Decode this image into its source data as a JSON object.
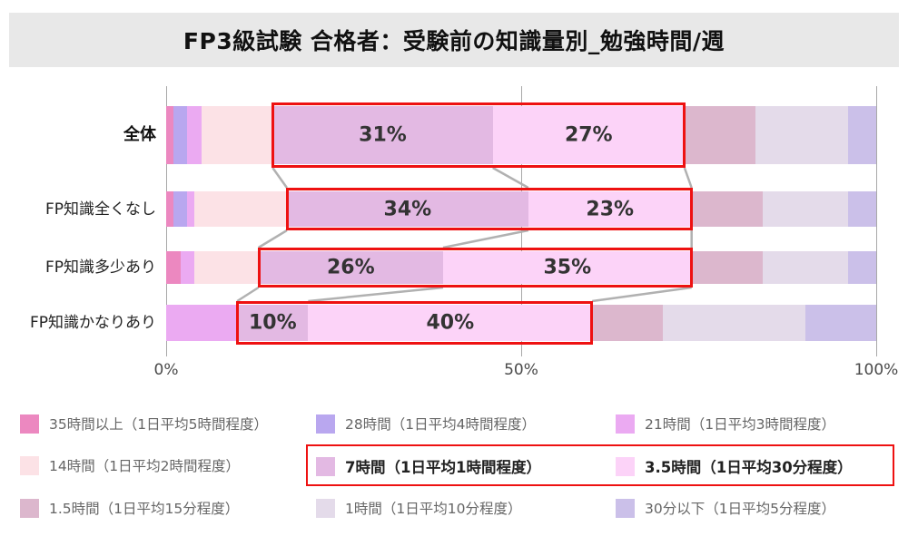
{
  "title": "FP3級試験 合格者：受験前の知識量別_勉強時間/週",
  "chart_data": {
    "type": "bar",
    "orientation": "horizontal",
    "stacked": true,
    "title": "FP3級試験 合格者：受験前の知識量別_勉強時間/週",
    "categories": [
      "全体",
      "FP知識全くなし",
      "FP知識多少あり",
      "FP知識かなりあり"
    ],
    "series": [
      {
        "name": "35時間以上（1日平均5時間程度）",
        "color": "#ec88c0",
        "values": [
          1,
          1,
          2,
          0
        ],
        "highlighted": false
      },
      {
        "name": "28時間（1日平均4時間程度）",
        "color": "#b9a7ef",
        "values": [
          2,
          2,
          0,
          0
        ],
        "highlighted": false
      },
      {
        "name": "21時間（1日平均3時間程度）",
        "color": "#ebaaf2",
        "values": [
          2,
          1,
          2,
          10
        ],
        "highlighted": false
      },
      {
        "name": "14時間（1日平均2時間程度）",
        "color": "#fce2e6",
        "values": [
          10,
          13,
          9,
          0
        ],
        "highlighted": false
      },
      {
        "name": "7時間（1日平均1時間程度）",
        "color": "#e3b9e3",
        "values": [
          31,
          34,
          26,
          10
        ],
        "highlighted": true
      },
      {
        "name": "3.5時間（1日平均30分程度）",
        "color": "#fcd3f8",
        "values": [
          27,
          23,
          35,
          40
        ],
        "highlighted": true
      },
      {
        "name": "1.5時間（1日平均15分程度）",
        "color": "#dcb7cd",
        "values": [
          10,
          10,
          10,
          10
        ],
        "highlighted": false
      },
      {
        "name": "1時間（1日平均10分程度）",
        "color": "#e4dbea",
        "values": [
          13,
          12,
          12,
          20
        ],
        "highlighted": false
      },
      {
        "name": "30分以下（1日平均5分程度）",
        "color": "#cbc0e9",
        "values": [
          4,
          4,
          4,
          10
        ],
        "highlighted": false
      }
    ],
    "data_labels": [
      [
        "31%",
        "27%"
      ],
      [
        "34%",
        "23%"
      ],
      [
        "26%",
        "35%"
      ],
      [
        "10%",
        "40%"
      ]
    ],
    "x_ticks": [
      {
        "label": "0%",
        "value": 0
      },
      {
        "label": "50%",
        "value": 50
      },
      {
        "label": "100%",
        "value": 100
      }
    ],
    "xlim": [
      0,
      100
    ],
    "grid": "vertical-only",
    "legend_position": "bottom",
    "legend_columns": 3,
    "highlight_color": "#ee1111",
    "connector_color": "#b1b1b1"
  }
}
